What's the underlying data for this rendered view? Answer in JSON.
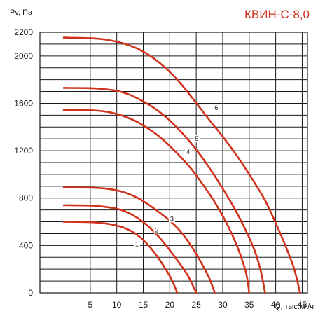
{
  "chart_data": {
    "type": "line",
    "title": "КВИН-С-8,0",
    "ylabel": "Pv, Па",
    "xlabel": "Q, тыс.м³/ч",
    "xlim": [
      -4.5,
      46
    ],
    "ylim": [
      0,
      2200
    ],
    "xticks": [
      5,
      10,
      15,
      20,
      25,
      30,
      35,
      40,
      45
    ],
    "yticks": [
      0,
      400,
      800,
      1200,
      1600,
      2000,
      2200
    ],
    "grid": true,
    "curve_color": "#d0321c",
    "series": [
      {
        "name": "1",
        "label_at": [
          13.8,
          410
        ],
        "points": [
          [
            0,
            600
          ],
          [
            5,
            597
          ],
          [
            8,
            585
          ],
          [
            10,
            568
          ],
          [
            12,
            538
          ],
          [
            14,
            485
          ],
          [
            16,
            400
          ],
          [
            18,
            285
          ],
          [
            19.5,
            180
          ],
          [
            20.5,
            100
          ],
          [
            21.4,
            0
          ]
        ]
      },
      {
        "name": "2",
        "label_at": [
          17.6,
          530
        ],
        "points": [
          [
            0,
            740
          ],
          [
            5,
            737
          ],
          [
            8,
            725
          ],
          [
            10,
            710
          ],
          [
            12,
            680
          ],
          [
            14,
            630
          ],
          [
            16,
            560
          ],
          [
            18,
            470
          ],
          [
            20,
            360
          ],
          [
            22,
            240
          ],
          [
            23.5,
            140
          ],
          [
            25,
            0
          ]
        ]
      },
      {
        "name": "3",
        "label_at": [
          20.4,
          625
        ],
        "points": [
          [
            0,
            890
          ],
          [
            5,
            888
          ],
          [
            8,
            880
          ],
          [
            10,
            865
          ],
          [
            12,
            840
          ],
          [
            14,
            800
          ],
          [
            16,
            745
          ],
          [
            18,
            680
          ],
          [
            20,
            610
          ],
          [
            22,
            520
          ],
          [
            24,
            400
          ],
          [
            26,
            250
          ],
          [
            27.5,
            120
          ],
          [
            28.5,
            0
          ]
        ]
      },
      {
        "name": "4",
        "label_at": [
          23.5,
          1190
        ],
        "points": [
          [
            0,
            1545
          ],
          [
            5,
            1542
          ],
          [
            8,
            1530
          ],
          [
            10,
            1510
          ],
          [
            12,
            1480
          ],
          [
            14,
            1440
          ],
          [
            16,
            1385
          ],
          [
            18,
            1320
          ],
          [
            20,
            1240
          ],
          [
            22,
            1150
          ],
          [
            24,
            1050
          ],
          [
            26,
            930
          ],
          [
            28,
            800
          ],
          [
            30,
            650
          ],
          [
            32,
            470
          ],
          [
            33.5,
            300
          ],
          [
            34.5,
            150
          ],
          [
            35,
            0
          ]
        ]
      },
      {
        "name": "5",
        "label_at": [
          25.1,
          1300
        ],
        "points": [
          [
            0,
            1730
          ],
          [
            5,
            1728
          ],
          [
            8,
            1718
          ],
          [
            10,
            1705
          ],
          [
            12,
            1680
          ],
          [
            14,
            1640
          ],
          [
            16,
            1590
          ],
          [
            18,
            1530
          ],
          [
            20,
            1455
          ],
          [
            22,
            1365
          ],
          [
            24,
            1265
          ],
          [
            26,
            1150
          ],
          [
            28,
            1020
          ],
          [
            30,
            880
          ],
          [
            32,
            730
          ],
          [
            34,
            560
          ],
          [
            36,
            360
          ],
          [
            37.2,
            180
          ],
          [
            38,
            0
          ]
        ]
      },
      {
        "name": "6",
        "label_at": [
          28.8,
          1560
        ],
        "points": [
          [
            0,
            2155
          ],
          [
            5,
            2150
          ],
          [
            8,
            2138
          ],
          [
            10,
            2120
          ],
          [
            12,
            2095
          ],
          [
            14,
            2060
          ],
          [
            16,
            2010
          ],
          [
            18,
            1945
          ],
          [
            20,
            1865
          ],
          [
            22,
            1770
          ],
          [
            24,
            1660
          ],
          [
            26,
            1545
          ],
          [
            28,
            1430
          ],
          [
            30,
            1320
          ],
          [
            32,
            1200
          ],
          [
            34,
            1070
          ],
          [
            36,
            930
          ],
          [
            38,
            780
          ],
          [
            40,
            590
          ],
          [
            42,
            380
          ],
          [
            43.5,
            200
          ],
          [
            44.6,
            0
          ]
        ]
      }
    ]
  }
}
